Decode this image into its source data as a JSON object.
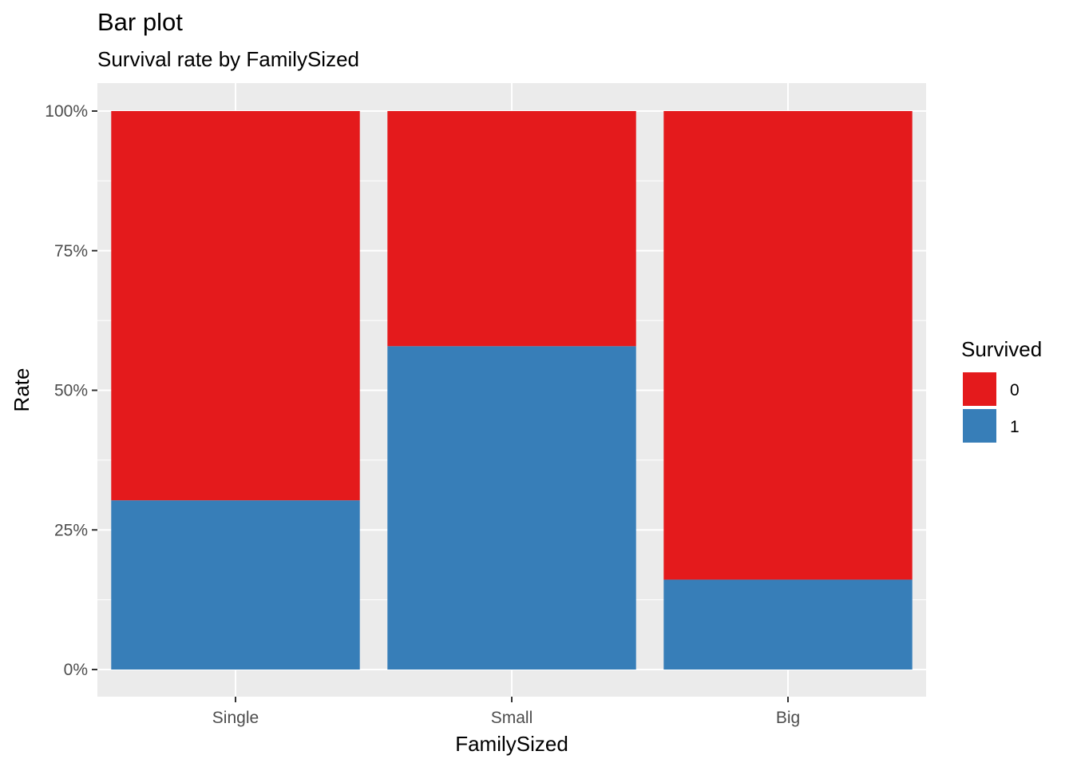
{
  "chart_data": {
    "type": "bar",
    "stacked": "fill",
    "title": "Bar plot",
    "subtitle": "Survival rate by FamilySized",
    "xlabel": "FamilySized",
    "ylabel": "Rate",
    "categories": [
      "Single",
      "Small",
      "Big"
    ],
    "series": [
      {
        "name": "0",
        "values": [
          0.697,
          0.421,
          0.839
        ],
        "color": "#E41A1C"
      },
      {
        "name": "1",
        "values": [
          0.303,
          0.579,
          0.161
        ],
        "color": "#377EB8"
      }
    ],
    "ylim": [
      0,
      1
    ],
    "yticks": [
      0,
      0.25,
      0.5,
      0.75,
      1
    ],
    "ytick_labels": [
      "0%",
      "25%",
      "50%",
      "75%",
      "100%"
    ],
    "grid": true,
    "legend": {
      "title": "Survived",
      "position": "right"
    },
    "panel_background": "#EBEBEB"
  }
}
